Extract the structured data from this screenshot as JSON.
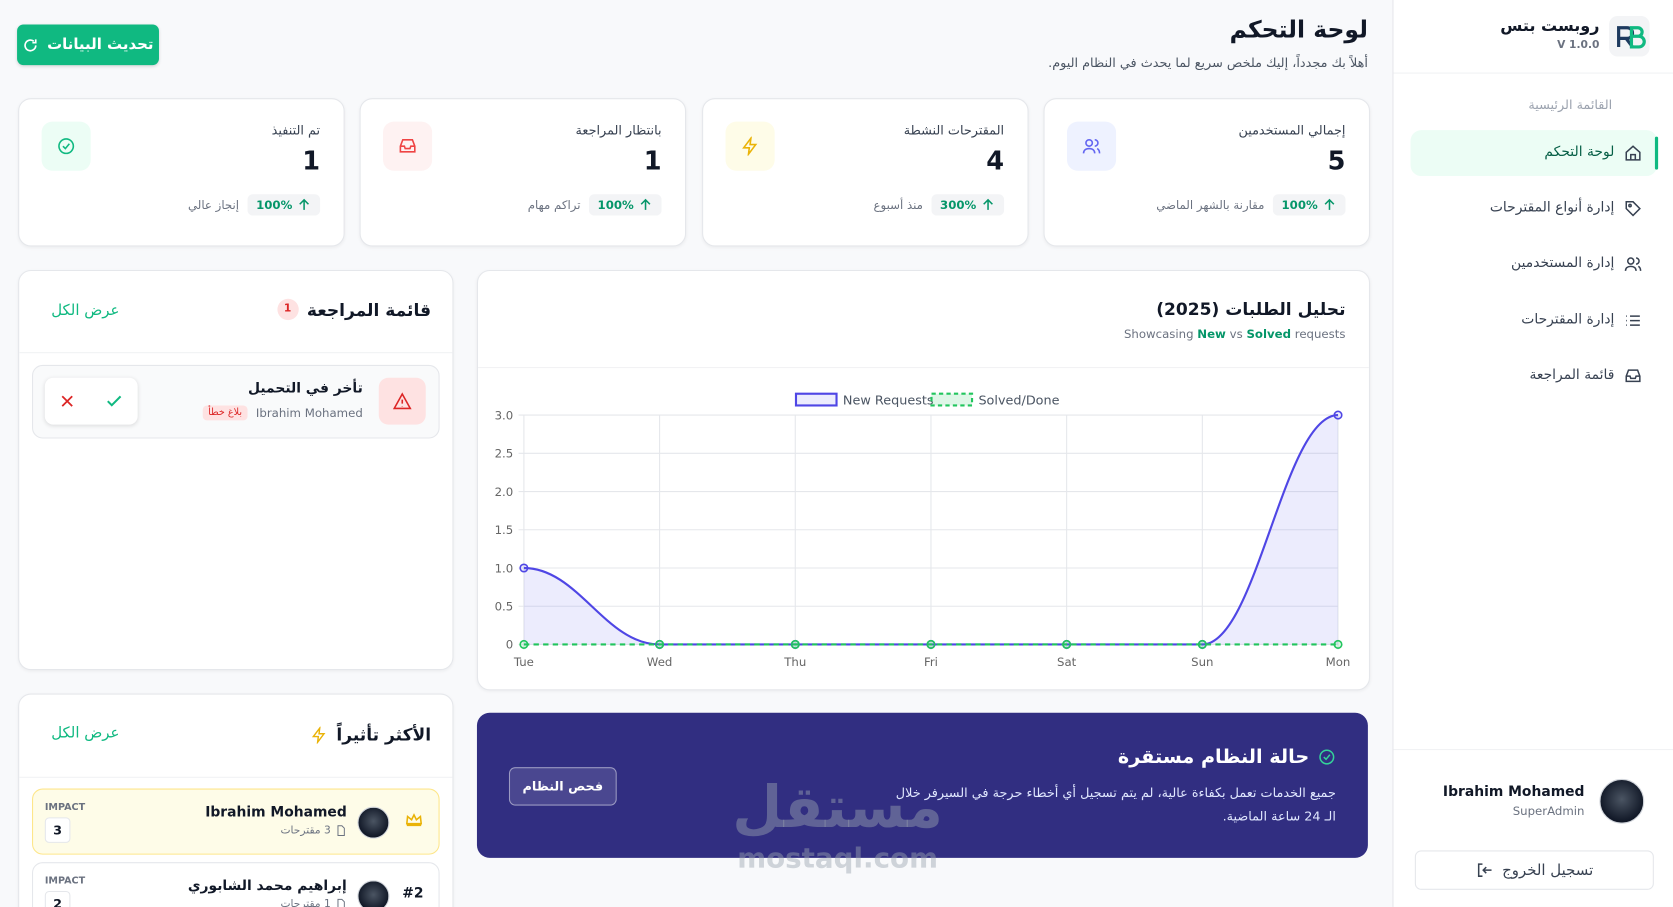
{
  "sidebar": {
    "brand": "روبست بتس",
    "version": "V 1.0.0",
    "section": "القائمة الرئيسية",
    "menu": [
      "لوحة التحكم",
      "إدارة أنواع المقترحات",
      "إدارة المستخدمين",
      "إدارة المقترحات",
      "قائمة المراجعة"
    ],
    "user": {
      "name": "Ibrahim Mohamed",
      "role": "SuperAdmin"
    },
    "logout": "تسجيل الخروج"
  },
  "header": {
    "title": "لوحة التحكم",
    "subtitle": "أهلاً بك مجدداً، إليك ملخص سريع لما يحدث في النظام اليوم.",
    "refresh": "تحديث البيانات"
  },
  "stats": [
    {
      "label": "إجمالي المستخدمين",
      "value": "5",
      "change": "100%",
      "note": "مقارنة بالشهر الماضي"
    },
    {
      "label": "المقترحات النشطة",
      "value": "4",
      "change": "300%",
      "note": "منذ أسبوع"
    },
    {
      "label": "بانتظار المراجعة",
      "value": "1",
      "change": "100%",
      "note": "تراكم مهام"
    },
    {
      "label": "تم التنفيذ",
      "value": "1",
      "change": "100%",
      "note": "إنجاز عالي"
    }
  ],
  "chart_data": {
    "type": "line",
    "title": "تحليل الطلبات (2025)",
    "subtitle": [
      "Showcasing",
      "New",
      "vs",
      "Solved",
      "requests"
    ],
    "categories": [
      "Tue",
      "Wed",
      "Thu",
      "Fri",
      "Sat",
      "Sun",
      "Mon"
    ],
    "series": [
      {
        "name": "New Requests",
        "color": "#4f46e5",
        "values": [
          1,
          0,
          0,
          0,
          0,
          0,
          3
        ]
      },
      {
        "name": "Solved/Done",
        "color": "#22c55e",
        "values": [
          0,
          0,
          0,
          0,
          0,
          0,
          0
        ]
      }
    ],
    "ylim": [
      0,
      3
    ],
    "yticks": [
      0,
      0.5,
      {
        "value": 1,
        "label": "1.0"
      },
      1.5,
      {
        "value": 2,
        "label": "2.0"
      },
      2.5,
      {
        "value": 3,
        "label": "3.0"
      }
    ],
    "grid": true,
    "legend": "top"
  },
  "review": {
    "title": "قائمة المراجعة",
    "count": "1",
    "view_all": "عرض الكل",
    "items": [
      {
        "title": "تأخر في التحميل",
        "user": "Ibrahim Mohamed",
        "tag": "بلاغ خطأ"
      }
    ]
  },
  "impact": {
    "title": "الأكثر تأثيراً",
    "view_all": "عرض الكل",
    "impact_label": "IMPACT",
    "items": [
      {
        "name": "Ibrahim Mohamed",
        "count": "3 مقترحات",
        "impact": "3"
      },
      {
        "rank": "#2",
        "name": "إبراهيم محمد الشابوري",
        "count": "1 مقترحات",
        "impact": "2"
      }
    ]
  },
  "status": {
    "title": "حالة النظام مستقرة",
    "description": "جميع الخدمات تعمل بكفاءة عالية، لم يتم تسجيل أي أخطاء حرجة في السيرفر خلال الـ 24 ساعة الماضية.",
    "button": "فحص النظام"
  },
  "watermark": [
    "مستقل",
    "mostaql.com"
  ]
}
